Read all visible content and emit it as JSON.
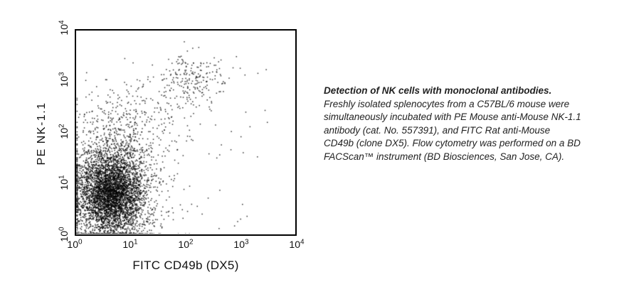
{
  "caption": {
    "title": "Detection of NK cells with monoclonal antibodies.",
    "lines": [
      "Freshly isolated splenocytes from a C57BL/6 mouse were",
      "simultaneously incubated with PE Mouse anti-Mouse NK-1.1",
      "antibody (cat. No. 557391), and FITC Rat anti-Mouse",
      "CD49b (clone DX5). Flow cytometry was performed on a BD",
      "FACScan™ instrument (BD Biosciences, San Jose, CA)."
    ]
  },
  "chart_data": {
    "type": "scatter",
    "subtype": "flow-cytometry-dot-plot",
    "title": "",
    "xlabel": "FITC CD49b (DX5)",
    "ylabel": "PE NK-1.1",
    "x_scale": "log",
    "y_scale": "log",
    "xlim": [
      1,
      10000
    ],
    "ylim": [
      1,
      10000
    ],
    "grid": false,
    "tick_base": "10",
    "x_tick_exponents": [
      0,
      1,
      2,
      3,
      4
    ],
    "y_tick_exponents": [
      0,
      1,
      2,
      3,
      4
    ],
    "dot_color": "#000000",
    "frame_color": "#000000",
    "background_color": "#ffffff",
    "populations": [
      {
        "name": "double-negative-lymphocytes-core",
        "count": 3800,
        "center_log_x": 0.62,
        "center_log_y": 0.8,
        "sd_log_x": 0.3,
        "sd_log_y": 0.42
      },
      {
        "name": "double-negative-halo",
        "count": 1150,
        "center_log_x": 0.7,
        "center_log_y": 0.95,
        "sd_log_x": 0.55,
        "sd_log_y": 0.72
      },
      {
        "name": "nk1.1-positive-cd49b-negative-column",
        "count": 230,
        "center_log_x": 0.75,
        "center_log_y": 2.05,
        "sd_log_x": 0.36,
        "sd_log_y": 0.52
      },
      {
        "name": "nk-cells-double-positive",
        "count": 185,
        "center_log_x": 2.13,
        "center_log_y": 3.08,
        "sd_log_x": 0.29,
        "sd_log_y": 0.24
      },
      {
        "name": "transition-trail",
        "count": 105,
        "center_log_x": 1.55,
        "center_log_y": 2.4,
        "sd_log_x": 0.5,
        "sd_log_y": 0.45
      },
      {
        "name": "sparse-background",
        "count": 70,
        "uniform": true,
        "x_log_range": [
          0.05,
          3.5
        ],
        "y_log_range": [
          0.05,
          3.3
        ]
      }
    ]
  }
}
